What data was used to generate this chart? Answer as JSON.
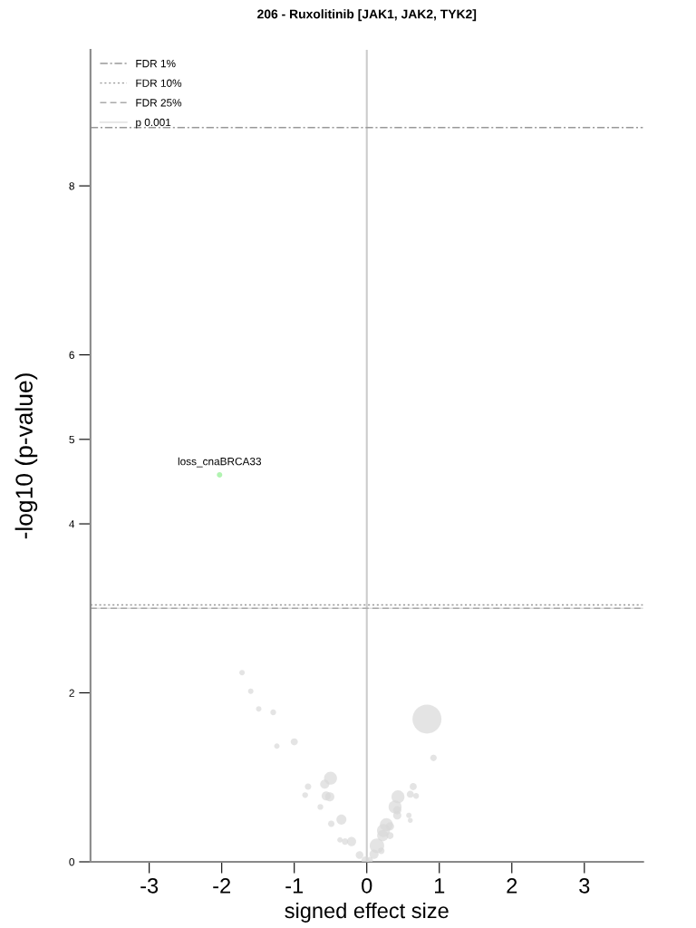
{
  "chart_data": {
    "type": "bubble",
    "title": "206 - Ruxolitinib [JAK1, JAK2, TYK2]",
    "xlabel": "signed effect size",
    "ylabel": "-log10 (p-value)",
    "xlim": [
      -3.81,
      3.81
    ],
    "xticks": [
      -3,
      -2,
      -1,
      0,
      1,
      2,
      3
    ],
    "ylim": [
      0,
      9.61
    ],
    "yticks": [
      0,
      2,
      4,
      5,
      6,
      8
    ],
    "grid": false,
    "legend": "top left",
    "series": [
      {
        "color": "#d9d9d9",
        "x": [
          -1.72,
          -1.6,
          -1.49,
          -1.29,
          -1.24,
          -1.0,
          -0.5,
          -0.58,
          -0.81,
          -0.85,
          -0.56,
          -0.51,
          -0.64,
          -0.35,
          -0.49,
          -0.37,
          -0.3,
          -0.21,
          -0.1,
          -0.02,
          0.83,
          0.92,
          0.64,
          0.6,
          0.68,
          0.43,
          0.39,
          0.42,
          0.42,
          0.58,
          0.6,
          0.27,
          0.32,
          0.23,
          0.22,
          0.32,
          0.14,
          0.2,
          0.1,
          0.04
        ],
        "values": [
          2.24,
          2.02,
          1.81,
          1.77,
          1.37,
          1.42,
          0.99,
          0.92,
          0.89,
          0.79,
          0.78,
          0.77,
          0.65,
          0.5,
          0.45,
          0.26,
          0.24,
          0.24,
          0.08,
          0.02,
          1.69,
          1.23,
          0.89,
          0.8,
          0.78,
          0.77,
          0.65,
          0.61,
          0.55,
          0.55,
          0.49,
          0.44,
          0.42,
          0.37,
          0.31,
          0.31,
          0.19,
          0.13,
          0.09,
          0.02
        ],
        "sizes": [
          0.035,
          0.035,
          0.035,
          0.04,
          0.035,
          0.06,
          0.2,
          0.1,
          0.05,
          0.04,
          0.1,
          0.1,
          0.04,
          0.12,
          0.05,
          0.035,
          0.05,
          0.1,
          0.07,
          0.07,
          1,
          0.05,
          0.06,
          0.06,
          0.04,
          0.2,
          0.2,
          0.08,
          0.08,
          0.035,
          0.03,
          0.2,
          0.08,
          0.2,
          0.15,
          0.06,
          0.25,
          0.05,
          0.1,
          0.05
        ]
      },
      {
        "color": "#90ee90",
        "x": [
          -2.03
        ],
        "values": [
          4.58
        ],
        "sizes": [
          0.035
        ]
      }
    ],
    "annotations": [
      {
        "text": "loss_cnaBRCA33",
        "x": -2.03,
        "y": 4.58
      }
    ],
    "ref_lines": [
      {
        "axis": "y",
        "value": 8.69,
        "label": "FDR 1%",
        "color": "#999999",
        "line_style": "dashdot"
      },
      {
        "axis": "y",
        "value": 3.04,
        "label": "FDR 10%",
        "color": "#999999",
        "line_style": "dotted"
      },
      {
        "axis": "y",
        "value": 3.0,
        "label": "FDR 25%",
        "color": "#aaaaaa",
        "line_style": "dashed"
      },
      {
        "axis": "y",
        "value": 3.0,
        "label": "p 0.001",
        "color": "#dddddd",
        "line_style": "solid"
      },
      {
        "axis": "x",
        "value": 0,
        "color": "#cccccc",
        "line_style": "solid"
      }
    ]
  }
}
